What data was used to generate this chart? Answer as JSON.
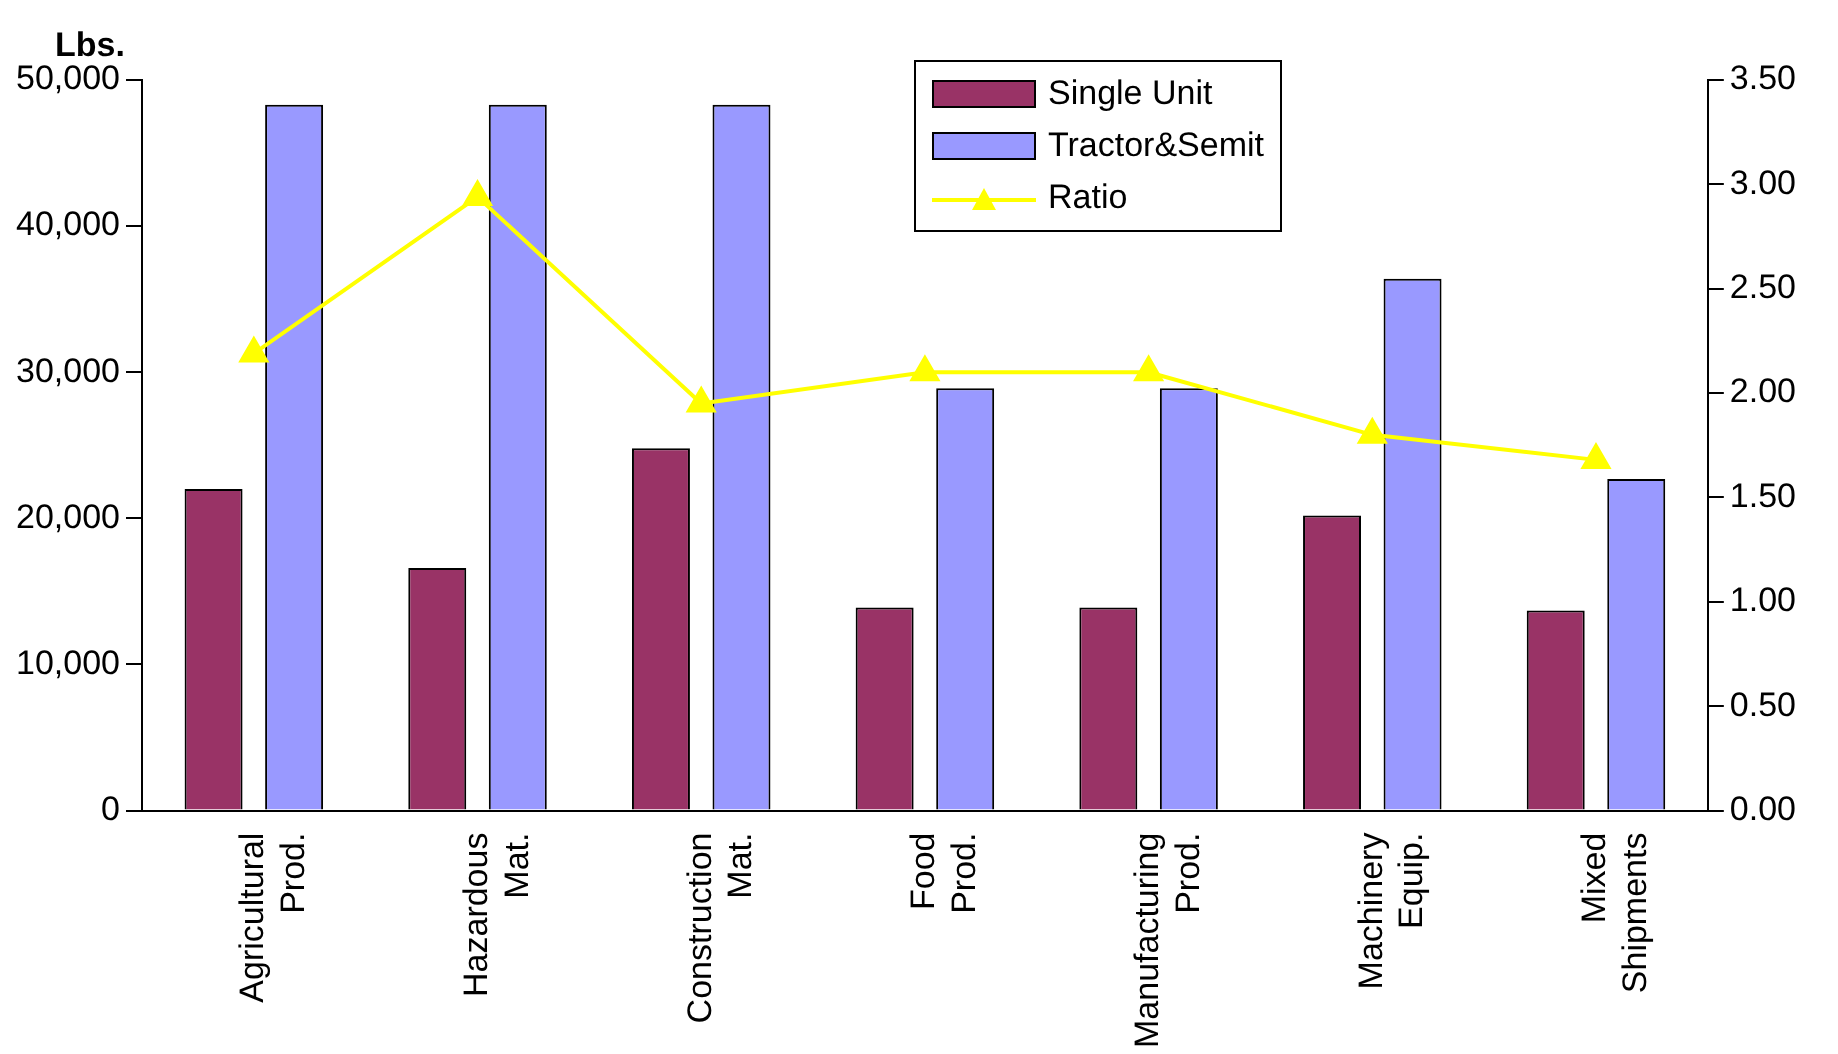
{
  "chart_data": {
    "type": "bar",
    "ylabel": "Lbs.",
    "categories": [
      "Agricultural Prod.",
      "Hazardous Mat.",
      "Construction Mat.",
      "Food Prod.",
      "Manufacturing Prod.",
      "Machinery Equip.",
      "Mixed Shipments"
    ],
    "series": [
      {
        "name": "Single Unit",
        "color": "#993366",
        "values": [
          22000,
          16600,
          24800,
          13900,
          13900,
          20200,
          13700
        ]
      },
      {
        "name": "Tractor&Semit",
        "color": "#9999ff",
        "values": [
          48300,
          48300,
          48300,
          28900,
          28900,
          36400,
          22700
        ]
      },
      {
        "name": "Ratio",
        "type": "line",
        "axis": "y2",
        "color": "#ffff00",
        "marker": "triangle",
        "values": [
          2.19,
          2.94,
          1.95,
          2.1,
          2.1,
          1.8,
          1.68
        ]
      }
    ],
    "ylim": [
      0,
      50000
    ],
    "yticks": [
      0,
      {
        "value": 10000,
        "label": "10,000"
      },
      {
        "value": 20000,
        "label": "20,000"
      },
      {
        "value": 30000,
        "label": "30,000"
      },
      {
        "value": 40000,
        "label": "40,000"
      },
      {
        "value": 50000,
        "label": "50,000"
      }
    ],
    "y2lim": [
      0,
      3.5
    ],
    "y2ticks": [
      {
        "value": 0,
        "label": "0.00"
      },
      {
        "value": 0.5,
        "label": "0.50"
      },
      {
        "value": 1,
        "label": "1.00"
      },
      {
        "value": 1.5,
        "label": "1.50"
      },
      {
        "value": 2,
        "label": "2.00"
      },
      {
        "value": 2.5,
        "label": "2.50"
      },
      {
        "value": 3,
        "label": "3.00"
      },
      {
        "value": 3.5,
        "label": "3.50"
      }
    ],
    "grid": false,
    "legend": "top right"
  }
}
